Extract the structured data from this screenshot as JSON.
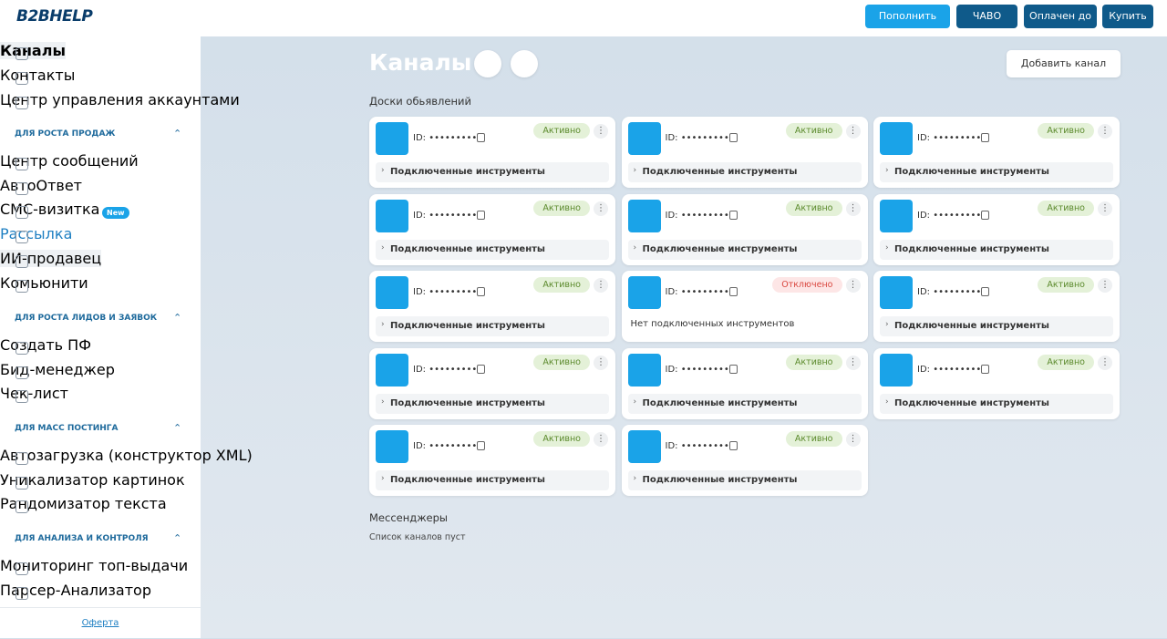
{
  "header": {
    "logo": "B2BHELP",
    "buttons": [
      "Пополнить",
      "ЧАВО",
      "Оплачен до",
      "Купить"
    ]
  },
  "sidebar": {
    "items": [
      "Каналы",
      "Контакты",
      "Центр управления аккаунтами"
    ],
    "sections": [
      {
        "title": "ДЛЯ РОСТА ПРОДАЖ",
        "items": [
          {
            "label": "Центр сообщений"
          },
          {
            "label": "АвтоОтвет"
          },
          {
            "label": "СМС-визитка",
            "badge": "New"
          },
          {
            "label": "Рассылка"
          },
          {
            "label": "ИИ-продавец"
          },
          {
            "label": "Комьюнити"
          }
        ]
      },
      {
        "title": "ДЛЯ РОСТА ЛИДОВ И ЗАЯВОК",
        "items": [
          {
            "label": "Создать ПФ"
          },
          {
            "label": "Бид-менеджер"
          },
          {
            "label": "Чек-лист"
          }
        ]
      },
      {
        "title": "ДЛЯ МАСС ПОСТИНГА",
        "items": [
          {
            "label": "Автозагрузка (конструктор XML)"
          },
          {
            "label": "Уникализатор картинок"
          },
          {
            "label": "Рандомизатор текста"
          }
        ]
      },
      {
        "title": "ДЛЯ АНАЛИЗА И КОНТРОЛЯ",
        "items": [
          {
            "label": "Мониторинг топ-выдачи"
          },
          {
            "label": "Парсер-Анализатор"
          }
        ]
      }
    ],
    "footer": "Оферта"
  },
  "main": {
    "title": "Каналы",
    "add_button": "Добавить канал",
    "boards": {
      "title": "Доски обьявлений",
      "cards": [
        {
          "id": "ID: •••••••••",
          "status": "Активно",
          "tools": "Подключенные инструменты"
        },
        {
          "id": "ID: •••••••••",
          "status": "Активно",
          "tools": "Подключенные инструменты"
        },
        {
          "id": "ID: •••••••••",
          "status": "Активно",
          "tools": "Подключенные инструменты"
        },
        {
          "id": "ID: •••••••••",
          "status": "Активно",
          "tools": "Подключенные инструменты"
        },
        {
          "id": "ID: •••••••••",
          "status": "Активно",
          "tools": "Подключенные инструменты"
        },
        {
          "id": "ID: •••••••••",
          "status": "Активно",
          "tools": "Подключенные инструменты"
        },
        {
          "id": "ID: •••••••••",
          "status": "Активно",
          "tools": "Подключенные инструменты"
        },
        {
          "id": "ID: •••••••••",
          "status": "Отключено",
          "empty": "Нет подключенных инструментов"
        },
        {
          "id": "ID: •••••••••",
          "status": "Активно",
          "tools": "Подключенные инструменты"
        },
        {
          "id": "ID: •••••••••",
          "status": "Активно",
          "tools": "Подключенные инструменты"
        },
        {
          "id": "ID: •••••••••",
          "status": "Активно",
          "tools": "Подключенные инструменты"
        },
        {
          "id": "ID: •••••••••",
          "status": "Активно",
          "tools": "Подключенные инструменты"
        },
        {
          "id": "ID: •••••••••",
          "status": "Активно",
          "tools": "Подключенные инструменты"
        },
        {
          "id": "ID: •••••••••",
          "status": "Активно",
          "tools": "Подключенные инструменты"
        }
      ]
    },
    "messengers": {
      "title": "Мессенджеры",
      "empty": "Список каналов пуст"
    }
  }
}
